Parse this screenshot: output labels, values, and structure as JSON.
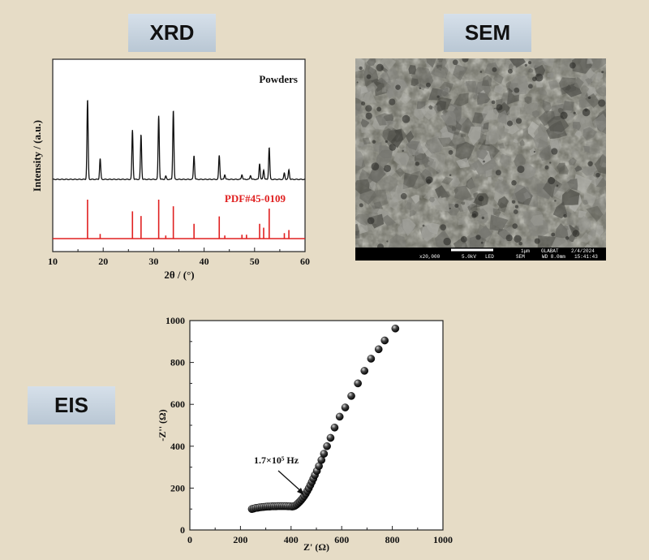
{
  "labels": {
    "xrd": "XRD",
    "sem": "SEM",
    "eis": "EIS"
  },
  "colors": {
    "background": "#e6dcc6",
    "xrd_pattern": "#111111",
    "reference": "#e02020",
    "eis_points": "#111111"
  },
  "sem": {
    "scale_bar": "1μm",
    "info": {
      "magnification": "x20,000",
      "voltage": "5.0kV",
      "detector": "LED",
      "mode": "SEM",
      "wd": "WD 8.0mm",
      "lab": "GLABAT",
      "date": "2/4/2024",
      "time": "15:41:43"
    }
  },
  "chart_data": [
    {
      "type": "line",
      "xlabel": "2θ / (°)",
      "ylabel": "Intensity / (a.u.)",
      "xlim": [
        10,
        60
      ],
      "xticks": [
        "10",
        "20",
        "30",
        "40",
        "50",
        "60"
      ],
      "annotations": [
        "Powders",
        "PDF#45-0109"
      ],
      "series": [
        {
          "name": "Powders",
          "peaks": [
            [
              16.9,
              100
            ],
            [
              19.4,
              26
            ],
            [
              25.8,
              62
            ],
            [
              27.5,
              56
            ],
            [
              31.0,
              80
            ],
            [
              32.4,
              4
            ],
            [
              33.9,
              87
            ],
            [
              38.0,
              30
            ],
            [
              43.0,
              30
            ],
            [
              44.1,
              6
            ],
            [
              47.5,
              6
            ],
            [
              49.2,
              5
            ],
            [
              51.0,
              20
            ],
            [
              51.8,
              12
            ],
            [
              52.9,
              40
            ],
            [
              55.9,
              8
            ],
            [
              56.8,
              12
            ]
          ]
        },
        {
          "name": "PDF#45-0109",
          "peaks": [
            [
              16.9,
              100
            ],
            [
              19.4,
              12
            ],
            [
              25.8,
              70
            ],
            [
              27.5,
              58
            ],
            [
              31.0,
              100
            ],
            [
              32.4,
              8
            ],
            [
              33.9,
              83
            ],
            [
              38.0,
              38
            ],
            [
              43.0,
              57
            ],
            [
              44.1,
              8
            ],
            [
              47.5,
              10
            ],
            [
              48.4,
              10
            ],
            [
              51.0,
              38
            ],
            [
              51.8,
              28
            ],
            [
              52.9,
              77
            ],
            [
              55.9,
              14
            ],
            [
              56.8,
              22
            ]
          ]
        }
      ]
    },
    {
      "type": "scatter",
      "xlabel": "Z' (Ω)",
      "ylabel": "-Z'' (Ω)",
      "xlim": [
        0,
        1000
      ],
      "ylim": [
        0,
        1000
      ],
      "xticks": [
        "0",
        "200",
        "400",
        "600",
        "800",
        "1000"
      ],
      "yticks": [
        "0",
        "200",
        "400",
        "600",
        "800",
        "1000"
      ],
      "annotations": [
        "1.7×10⁵ Hz"
      ],
      "x": [
        245,
        252,
        260,
        268,
        276,
        284,
        292,
        300,
        308,
        316,
        324,
        332,
        340,
        348,
        356,
        364,
        372,
        380,
        388,
        396,
        404,
        410,
        416,
        422,
        428,
        434,
        440,
        446,
        452,
        458,
        464,
        470,
        476,
        482,
        488,
        494,
        502,
        510,
        520,
        530,
        542,
        556,
        572,
        592,
        614,
        638,
        664,
        690,
        716,
        746,
        770,
        812
      ],
      "y": [
        100,
        102,
        105,
        106,
        108,
        109,
        110,
        111,
        112,
        112,
        113,
        113,
        113,
        114,
        114,
        114,
        114,
        114,
        113,
        113,
        112,
        113,
        116,
        121,
        128,
        135,
        143,
        152,
        162,
        173,
        186,
        199,
        214,
        229,
        245,
        262,
        282,
        305,
        334,
        364,
        400,
        440,
        489,
        541,
        585,
        640,
        700,
        760,
        818,
        863,
        905,
        962
      ]
    }
  ]
}
